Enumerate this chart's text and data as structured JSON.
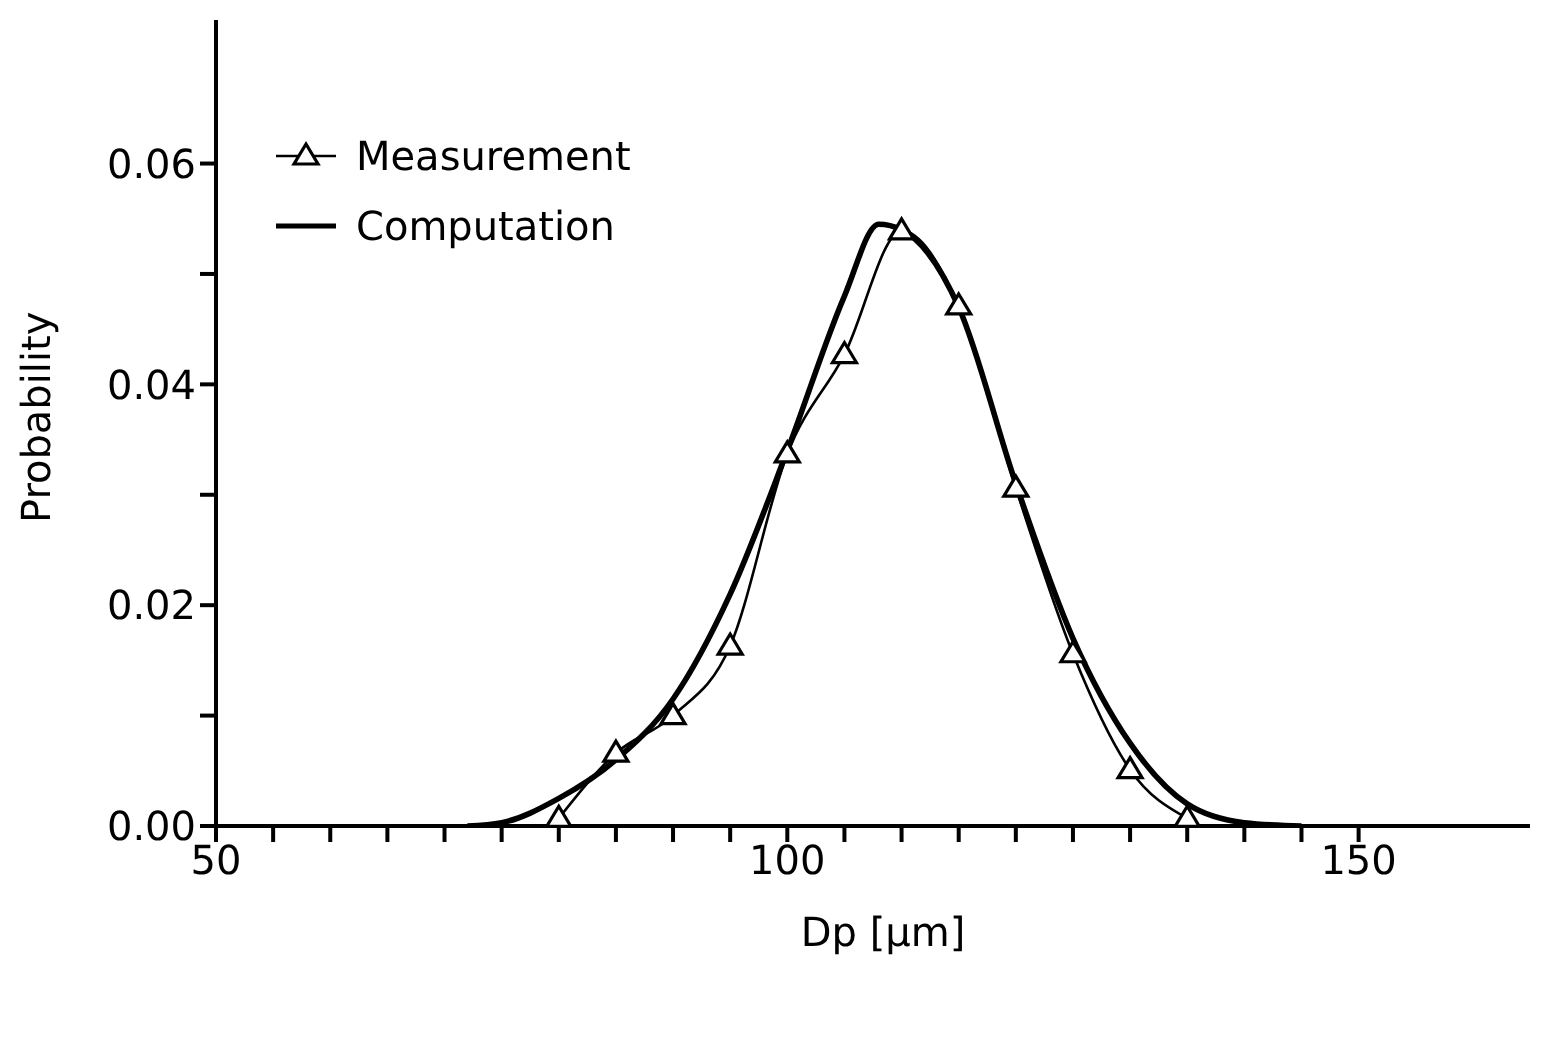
{
  "chart_data": {
    "type": "line",
    "xlabel": "Dp [μm]",
    "ylabel": "Probability",
    "xlim": [
      50,
      165
    ],
    "ylim": [
      0,
      0.073
    ],
    "xticks": [
      50,
      {
        "value": 55,
        "label": null
      },
      {
        "value": 60,
        "label": null
      },
      {
        "value": 65,
        "label": null
      },
      {
        "value": 70,
        "label": null
      },
      {
        "value": 75,
        "label": null
      },
      {
        "value": 80,
        "label": null
      },
      {
        "value": 85,
        "label": null
      },
      {
        "value": 90,
        "label": null
      },
      {
        "value": 95,
        "label": null
      },
      100,
      {
        "value": 105,
        "label": null
      },
      {
        "value": 110,
        "label": null
      },
      {
        "value": 115,
        "label": null
      },
      {
        "value": 120,
        "label": null
      },
      {
        "value": 125,
        "label": null
      },
      {
        "value": 130,
        "label": null
      },
      {
        "value": 135,
        "label": null
      },
      {
        "value": 140,
        "label": null
      },
      {
        "value": 145,
        "label": null
      },
      150
    ],
    "yticks": [
      {
        "value": 0,
        "label": "0.00"
      },
      {
        "value": 0.01,
        "label": null
      },
      {
        "value": 0.02,
        "label": "0.02"
      },
      {
        "value": 0.03,
        "label": null
      },
      {
        "value": 0.04,
        "label": "0.04"
      },
      {
        "value": 0.05,
        "label": null
      },
      {
        "value": 0.06,
        "label": "0.06"
      }
    ],
    "grid": false,
    "legend": "top left",
    "series": [
      {
        "name": "Measurement",
        "color": "#000000",
        "marker": "triangle",
        "x": [
          80,
          85,
          90,
          95,
          100,
          105,
          110,
          115,
          120,
          125,
          130,
          135
        ],
        "values": [
          0.0007,
          0.0066,
          0.01,
          0.0163,
          0.0337,
          0.0427,
          0.0539,
          0.0471,
          0.0306,
          0.0156,
          0.0051,
          0.0007
        ]
      },
      {
        "name": "Computation",
        "color": "#000000",
        "marker": "none",
        "x": [
          72,
          75,
          80,
          85,
          90,
          95,
          100,
          105,
          108,
          110,
          115,
          120,
          125,
          130,
          135,
          140,
          145
        ],
        "values": [
          0,
          0.0003,
          0.0025,
          0.006,
          0.0115,
          0.021,
          0.034,
          0.048,
          0.0545,
          0.054,
          0.047,
          0.031,
          0.017,
          0.0075,
          0.002,
          0.0003,
          0
        ]
      }
    ]
  }
}
